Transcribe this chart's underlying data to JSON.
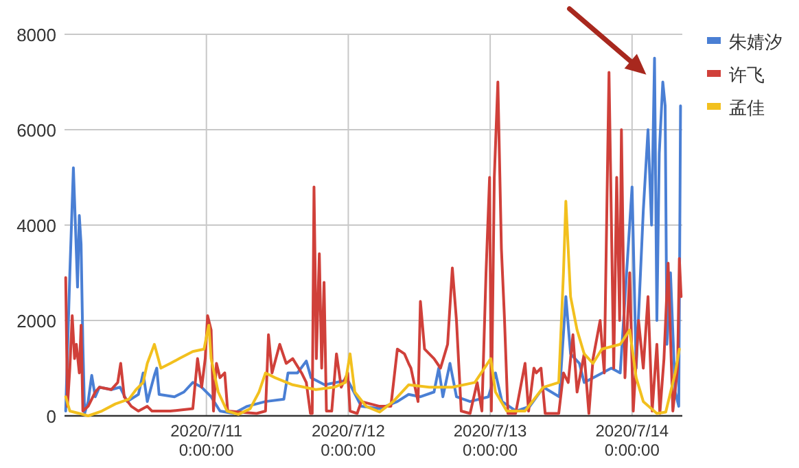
{
  "chart_data": {
    "type": "line",
    "xlim": [
      "2020-07-10T00:00",
      "2020-07-14T08:30"
    ],
    "xticks": [
      {
        "value": "2020-07-11T00:00",
        "label": "2020/7/11 0:00:00"
      },
      {
        "value": "2020-07-12T00:00",
        "label": "2020/7/12 0:00:00"
      },
      {
        "value": "2020-07-13T00:00",
        "label": "2020/7/13 0:00:00"
      },
      {
        "value": "2020-07-14T00:00",
        "label": "2020/7/14 0:00:00"
      }
    ],
    "ylim": [
      0,
      8000
    ],
    "yticks": [
      0,
      2000,
      4000,
      6000,
      8000
    ],
    "grid": true,
    "legend": "top right",
    "series": [
      {
        "name": "朱婧汐",
        "color": "#4a7fd4",
        "x": [
          "2020-07-10T00:12",
          "2020-07-10T00:54",
          "2020-07-10T01:30",
          "2020-07-10T01:54",
          "2020-07-10T02:12",
          "2020-07-10T02:30",
          "2020-07-10T02:48",
          "2020-07-10T03:06",
          "2020-07-10T03:24",
          "2020-07-10T04:00",
          "2020-07-10T04:36",
          "2020-07-10T05:12",
          "2020-07-10T05:54",
          "2020-07-10T07:54",
          "2020-07-10T09:24",
          "2020-07-10T10:36",
          "2020-07-10T12:30",
          "2020-07-10T13:18",
          "2020-07-10T14:00",
          "2020-07-10T15:12",
          "2020-07-10T15:36",
          "2020-07-10T16:00",
          "2020-07-10T18:36",
          "2020-07-10T20:12",
          "2020-07-10T21:42",
          "2020-07-10T23:12",
          "2020-07-11T00:48",
          "2020-07-11T02:18",
          "2020-07-11T04:36",
          "2020-07-11T06:54",
          "2020-07-11T10:00",
          "2020-07-11T13:06",
          "2020-07-11T13:48",
          "2020-07-11T15:24",
          "2020-07-11T16:54",
          "2020-07-11T17:42",
          "2020-07-11T20:00",
          "2020-07-11T23:54",
          "2020-07-12T02:12",
          "2020-07-12T05:18",
          "2020-07-12T08:18",
          "2020-07-12T10:12",
          "2020-07-12T12:12",
          "2020-07-12T14:30",
          "2020-07-12T15:18",
          "2020-07-12T16:00",
          "2020-07-12T17:12",
          "2020-07-12T18:18",
          "2020-07-12T20:36",
          "2020-07-12T23:42",
          "2020-07-13T00:54",
          "2020-07-13T02:00",
          "2020-07-13T04:24",
          "2020-07-13T06:42",
          "2020-07-13T09:00",
          "2020-07-13T11:42",
          "2020-07-13T12:48",
          "2020-07-13T13:36",
          "2020-07-13T15:06",
          "2020-07-13T15:54",
          "2020-07-13T18:12",
          "2020-07-13T20:30",
          "2020-07-13T22:00",
          "2020-07-14T00:00",
          "2020-07-14T00:42",
          "2020-07-14T01:54",
          "2020-07-14T02:42",
          "2020-07-14T03:18",
          "2020-07-14T03:48",
          "2020-07-14T04:12",
          "2020-07-14T04:36",
          "2020-07-14T05:12",
          "2020-07-14T05:36",
          "2020-07-14T05:54",
          "2020-07-14T06:30",
          "2020-07-14T07:18",
          "2020-07-14T07:54",
          "2020-07-14T08:12"
        ],
        "values": [
          100,
          3000,
          5200,
          3800,
          2700,
          4200,
          3600,
          1500,
          50,
          300,
          850,
          400,
          600,
          550,
          600,
          300,
          450,
          900,
          300,
          850,
          1000,
          450,
          400,
          500,
          700,
          600,
          400,
          100,
          50,
          200,
          300,
          350,
          900,
          900,
          1150,
          800,
          650,
          750,
          200,
          150,
          300,
          450,
          400,
          500,
          1000,
          400,
          1100,
          400,
          300,
          400,
          900,
          300,
          100,
          200,
          600,
          400,
          2500,
          1300,
          1100,
          700,
          850,
          1000,
          900,
          4800,
          1000,
          4300,
          6000,
          4000,
          7500,
          2000,
          5500,
          7000,
          6500,
          1500,
          3000,
          500,
          200,
          6500
        ]
      },
      {
        "name": "许飞",
        "color": "#d0403a",
        "x": [
          "2020-07-10T00:12",
          "2020-07-10T00:30",
          "2020-07-10T00:54",
          "2020-07-10T01:18",
          "2020-07-10T01:42",
          "2020-07-10T02:00",
          "2020-07-10T02:30",
          "2020-07-10T02:48",
          "2020-07-10T03:06",
          "2020-07-10T04:00",
          "2020-07-10T05:12",
          "2020-07-10T05:54",
          "2020-07-10T07:54",
          "2020-07-10T09:00",
          "2020-07-10T09:30",
          "2020-07-10T10:06",
          "2020-07-10T11:18",
          "2020-07-10T12:30",
          "2020-07-10T14:00",
          "2020-07-10T14:48",
          "2020-07-10T17:54",
          "2020-07-10T21:42",
          "2020-07-10T22:30",
          "2020-07-10T23:12",
          "2020-07-10T23:48",
          "2020-07-11T00:12",
          "2020-07-11T00:48",
          "2020-07-11T01:12",
          "2020-07-11T01:42",
          "2020-07-11T02:18",
          "2020-07-11T03:06",
          "2020-07-11T03:36",
          "2020-07-11T08:30",
          "2020-07-11T10:00",
          "2020-07-11T10:30",
          "2020-07-11T11:06",
          "2020-07-11T12:24",
          "2020-07-11T13:30",
          "2020-07-11T14:36",
          "2020-07-11T16:06",
          "2020-07-11T16:54",
          "2020-07-11T17:36",
          "2020-07-11T17:54",
          "2020-07-11T18:12",
          "2020-07-11T18:36",
          "2020-07-11T19:06",
          "2020-07-11T19:30",
          "2020-07-11T19:54",
          "2020-07-11T20:18",
          "2020-07-11T21:12",
          "2020-07-11T22:00",
          "2020-07-11T22:48",
          "2020-07-11T23:54",
          "2020-07-12T00:18",
          "2020-07-12T01:30",
          "2020-07-12T02:12",
          "2020-07-12T05:18",
          "2020-07-12T07:12",
          "2020-07-12T08:18",
          "2020-07-12T09:30",
          "2020-07-12T10:12",
          "2020-07-12T10:36",
          "2020-07-12T11:48",
          "2020-07-12T12:12",
          "2020-07-12T12:54",
          "2020-07-12T14:30",
          "2020-07-12T15:36",
          "2020-07-12T16:48",
          "2020-07-12T17:36",
          "2020-07-12T18:18",
          "2020-07-12T19:06",
          "2020-07-12T20:36",
          "2020-07-12T21:48",
          "2020-07-12T22:36",
          "2020-07-12T23:18",
          "2020-07-12T23:54",
          "2020-07-13T00:12",
          "2020-07-13T00:42",
          "2020-07-13T01:18",
          "2020-07-13T01:54",
          "2020-07-13T02:24",
          "2020-07-13T03:00",
          "2020-07-13T04:18",
          "2020-07-13T05:54",
          "2020-07-13T06:30",
          "2020-07-13T07:24",
          "2020-07-13T07:48",
          "2020-07-13T08:36",
          "2020-07-13T09:18",
          "2020-07-13T11:36",
          "2020-07-13T12:24",
          "2020-07-13T13:12",
          "2020-07-13T14:00",
          "2020-07-13T14:42",
          "2020-07-13T15:54",
          "2020-07-13T16:42",
          "2020-07-13T17:24",
          "2020-07-13T18:36",
          "2020-07-13T19:18",
          "2020-07-13T20:06",
          "2020-07-13T20:54",
          "2020-07-13T21:24",
          "2020-07-13T21:54",
          "2020-07-13T22:12",
          "2020-07-13T22:48",
          "2020-07-13T23:36",
          "2020-07-14T00:12",
          "2020-07-14T01:06",
          "2020-07-14T01:54",
          "2020-07-14T02:42",
          "2020-07-14T03:24",
          "2020-07-14T04:12",
          "2020-07-14T04:42",
          "2020-07-14T05:24",
          "2020-07-14T06:06",
          "2020-07-14T06:54",
          "2020-07-14T07:42",
          "2020-07-14T08:00",
          "2020-07-14T08:18"
        ],
        "values": [
          2900,
          200,
          1000,
          2100,
          1200,
          1500,
          900,
          1900,
          100,
          200,
          500,
          600,
          550,
          700,
          1100,
          400,
          200,
          100,
          200,
          100,
          100,
          150,
          1200,
          600,
          1200,
          2100,
          1800,
          100,
          1100,
          800,
          900,
          100,
          50,
          100,
          1700,
          900,
          1500,
          1100,
          1200,
          900,
          700,
          50,
          50,
          4800,
          1200,
          3400,
          1000,
          2800,
          100,
          100,
          1300,
          600,
          900,
          100,
          50,
          300,
          200,
          200,
          1400,
          1300,
          1100,
          1000,
          300,
          2400,
          1400,
          1200,
          1000,
          1500,
          3100,
          2000,
          100,
          50,
          700,
          100,
          3000,
          5000,
          100,
          5000,
          7000,
          3500,
          2100,
          50,
          50,
          1100,
          100,
          1000,
          900,
          1000,
          50,
          50,
          900,
          700,
          1700,
          500,
          1300,
          50,
          1200,
          2000,
          900,
          7200,
          1000,
          5000,
          2000,
          6000,
          800,
          3000,
          100,
          2000,
          1000,
          2500,
          100,
          1500,
          50,
          1200,
          3200,
          100,
          1000,
          3300,
          2500
        ]
      },
      {
        "name": "孟佳",
        "color": "#f2c01e",
        "x": [
          "2020-07-10T00:12",
          "2020-07-10T00:54",
          "2020-07-10T02:30",
          "2020-07-10T04:00",
          "2020-07-10T06:18",
          "2020-07-10T08:36",
          "2020-07-10T10:54",
          "2020-07-10T12:06",
          "2020-07-10T13:18",
          "2020-07-10T14:00",
          "2020-07-10T15:12",
          "2020-07-10T16:18",
          "2020-07-10T17:54",
          "2020-07-10T19:24",
          "2020-07-10T21:42",
          "2020-07-10T23:36",
          "2020-07-11T00:24",
          "2020-07-11T00:48",
          "2020-07-11T02:00",
          "2020-07-11T03:30",
          "2020-07-11T05:24",
          "2020-07-11T07:24",
          "2020-07-11T08:54",
          "2020-07-11T10:00",
          "2020-07-11T11:36",
          "2020-07-11T14:36",
          "2020-07-11T18:30",
          "2020-07-11T21:36",
          "2020-07-11T23:30",
          "2020-07-12T00:18",
          "2020-07-12T01:06",
          "2020-07-12T03:00",
          "2020-07-12T05:18",
          "2020-07-12T07:36",
          "2020-07-12T10:12",
          "2020-07-12T13:42",
          "2020-07-12T17:36",
          "2020-07-12T21:24",
          "2020-07-13T00:06",
          "2020-07-13T00:54",
          "2020-07-13T02:48",
          "2020-07-13T05:54",
          "2020-07-13T09:00",
          "2020-07-13T11:36",
          "2020-07-13T12:24",
          "2020-07-13T12:48",
          "2020-07-13T13:36",
          "2020-07-13T14:42",
          "2020-07-13T15:54",
          "2020-07-13T17:24",
          "2020-07-13T18:54",
          "2020-07-13T22:00",
          "2020-07-13T23:36",
          "2020-07-14T00:42",
          "2020-07-14T01:54",
          "2020-07-14T04:12",
          "2020-07-14T05:42",
          "2020-07-14T07:18",
          "2020-07-14T08:00"
        ],
        "values": [
          400,
          100,
          50,
          0,
          100,
          250,
          350,
          550,
          700,
          1100,
          1500,
          1000,
          1100,
          1200,
          1350,
          1400,
          1900,
          1200,
          500,
          100,
          30,
          150,
          500,
          900,
          800,
          650,
          550,
          600,
          700,
          1300,
          500,
          200,
          80,
          300,
          650,
          600,
          600,
          700,
          1200,
          500,
          100,
          100,
          600,
          700,
          3000,
          4500,
          2500,
          1800,
          1300,
          1100,
          1400,
          1500,
          1800,
          800,
          300,
          50,
          80,
          900,
          1400
        ]
      }
    ]
  }
}
